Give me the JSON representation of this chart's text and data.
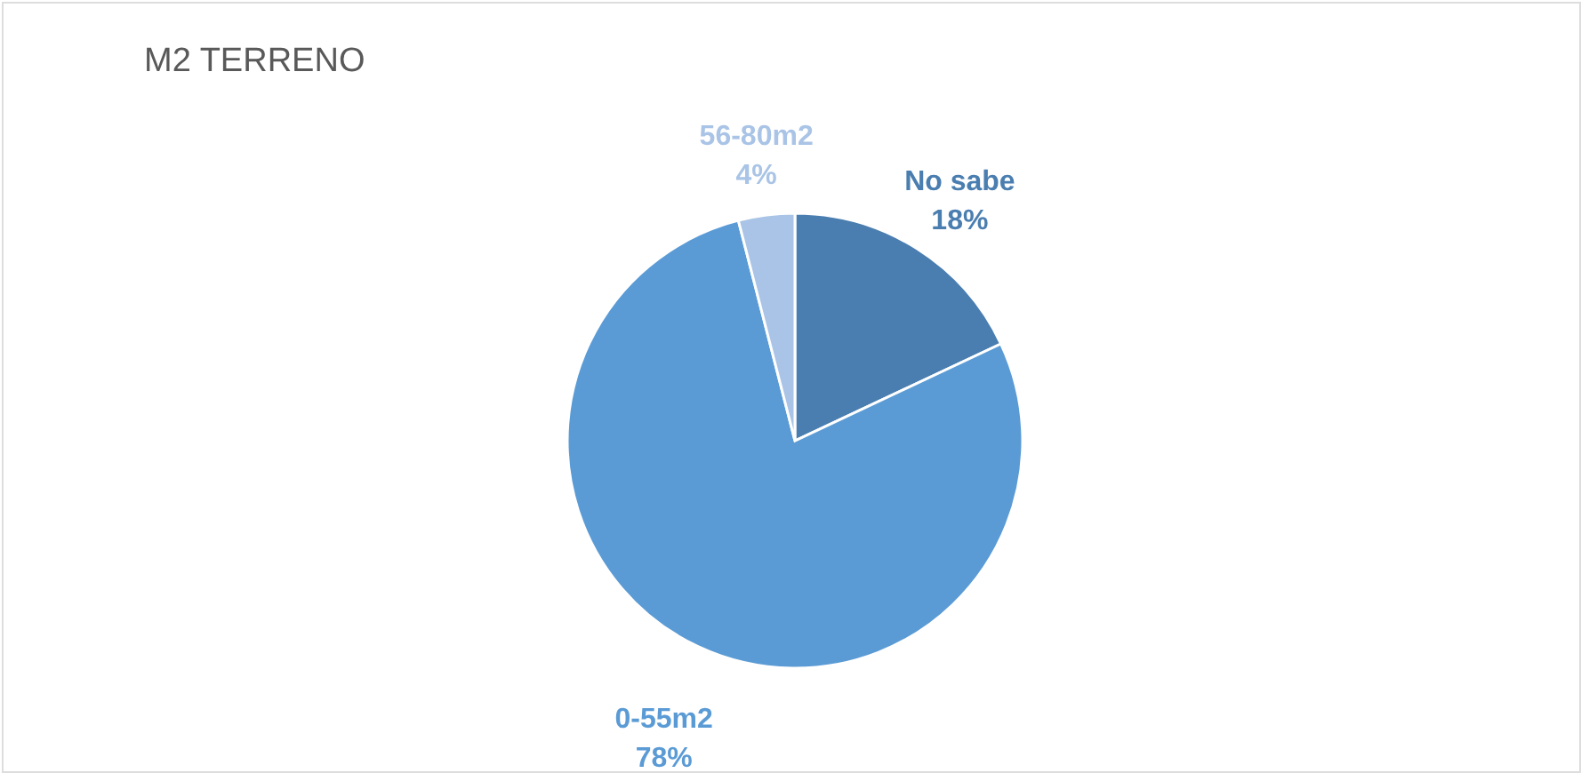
{
  "chart_data": {
    "type": "pie",
    "title": "M2 TERRENO",
    "categories": [
      "No sabe",
      "0-55m2",
      "56-80m2"
    ],
    "values": [
      18,
      78,
      4
    ],
    "colors": [
      "#4a7eb0",
      "#5b9bd5",
      "#a9c4e6"
    ],
    "value_labels": [
      "18%",
      "78%",
      "4%"
    ]
  }
}
